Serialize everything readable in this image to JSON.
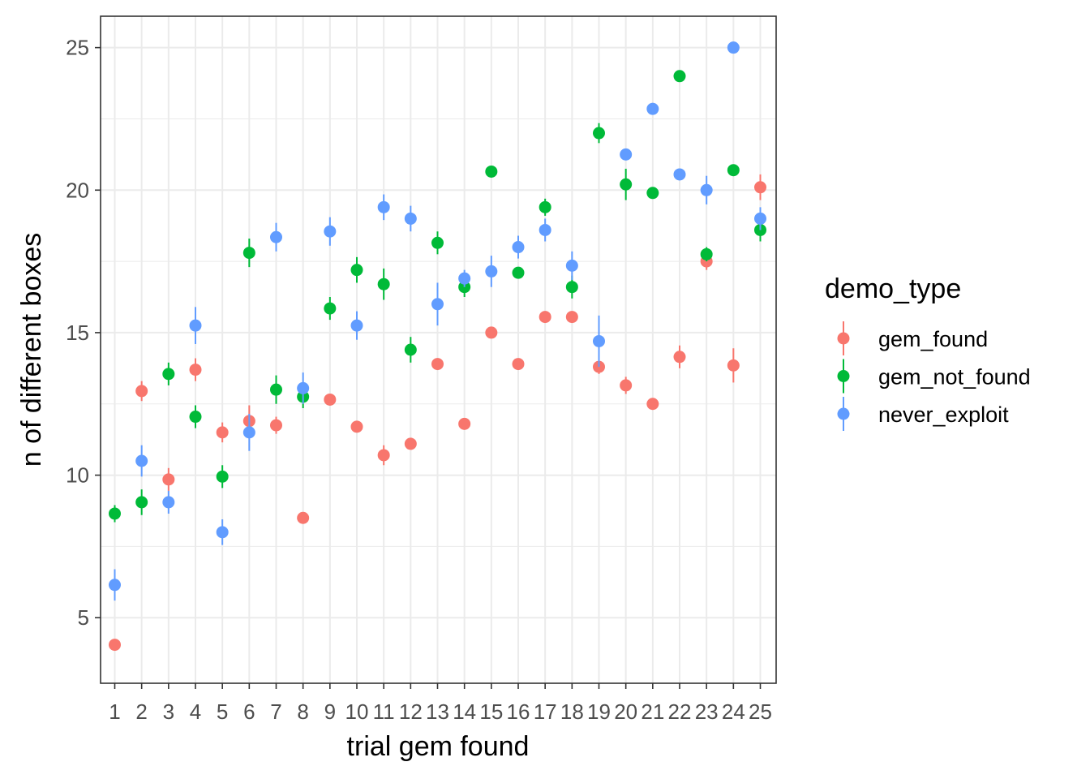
{
  "chart_data": {
    "type": "scatter",
    "xlabel": "trial gem found",
    "ylabel": "n of different boxes",
    "categories": [
      "1",
      "2",
      "3",
      "4",
      "5",
      "6",
      "7",
      "8",
      "9",
      "10",
      "11",
      "12",
      "13",
      "14",
      "15",
      "16",
      "17",
      "18",
      "19",
      "20",
      "21",
      "22",
      "23",
      "24",
      "25"
    ],
    "ylim": [
      2.7,
      26.1
    ],
    "yticks": [
      5,
      10,
      15,
      20,
      25
    ],
    "grid": true,
    "legend_title": "demo_type",
    "legend_position": "right",
    "series": [
      {
        "name": "gem_found",
        "color": "#F8766D",
        "values": [
          4.05,
          12.95,
          9.85,
          13.7,
          11.5,
          11.9,
          11.75,
          8.5,
          12.65,
          11.7,
          10.7,
          11.1,
          13.9,
          11.8,
          15.0,
          13.9,
          15.55,
          15.55,
          13.8,
          13.15,
          12.5,
          14.15,
          17.5,
          13.85,
          20.1
        ],
        "err": [
          0.2,
          0.35,
          0.4,
          0.4,
          0.35,
          0.55,
          0.3,
          0.2,
          0.2,
          0.2,
          0.35,
          0.2,
          0.2,
          0.2,
          0.2,
          0.2,
          0.2,
          0.2,
          0.25,
          0.3,
          0.2,
          0.4,
          0.3,
          0.6,
          0.45
        ]
      },
      {
        "name": "gem_not_found",
        "color": "#00BA38",
        "values": [
          8.65,
          9.05,
          13.55,
          12.05,
          9.95,
          17.8,
          13.0,
          12.75,
          15.85,
          17.2,
          16.7,
          14.4,
          18.15,
          16.6,
          20.65,
          17.1,
          19.4,
          16.6,
          22.0,
          20.2,
          19.9,
          24.0,
          17.75,
          20.7,
          18.6
        ],
        "err": [
          0.3,
          0.45,
          0.4,
          0.4,
          0.4,
          0.5,
          0.5,
          0.4,
          0.4,
          0.45,
          0.55,
          0.45,
          0.4,
          0.35,
          0.2,
          0.2,
          0.3,
          0.4,
          0.35,
          0.55,
          0.2,
          0.2,
          0.25,
          0.2,
          0.4
        ]
      },
      {
        "name": "never_exploit",
        "color": "#619CFF",
        "values": [
          6.15,
          10.5,
          9.05,
          15.25,
          8.0,
          11.5,
          18.35,
          13.05,
          18.55,
          15.25,
          19.4,
          19.0,
          16.0,
          16.9,
          17.15,
          18.0,
          18.6,
          17.35,
          14.7,
          21.25,
          22.85,
          20.55,
          20.0,
          25.0,
          19.0
        ],
        "err": [
          0.55,
          0.55,
          0.4,
          0.65,
          0.45,
          0.65,
          0.5,
          0.55,
          0.5,
          0.5,
          0.45,
          0.45,
          0.75,
          0.3,
          0.55,
          0.4,
          0.4,
          0.5,
          0.9,
          0.2,
          0.2,
          0.2,
          0.5,
          0.2,
          0.4
        ]
      }
    ]
  }
}
